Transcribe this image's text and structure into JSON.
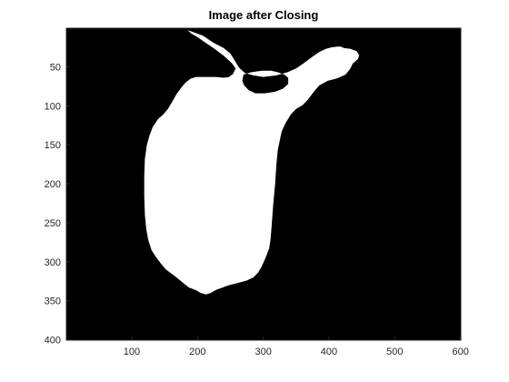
{
  "title": "Image after Closing",
  "colors": {
    "background": "#000000",
    "foreground": "#ffffff",
    "axis": "#262626"
  },
  "axes": {
    "x_ticks": [
      100,
      200,
      300,
      400,
      500,
      600
    ],
    "x_tick_labels": [
      "100",
      "200",
      "300",
      "400",
      "500",
      "600"
    ],
    "y_ticks": [
      50,
      100,
      150,
      200,
      250,
      300,
      350,
      400
    ],
    "y_tick_labels": [
      "50",
      "100",
      "150",
      "200",
      "250",
      "300",
      "350",
      "400"
    ],
    "xlim": [
      0.5,
      600.5
    ],
    "ylim": [
      0.5,
      400.5
    ],
    "y_reversed": true
  },
  "blob": {
    "outline": [
      [
        185,
        3
      ],
      [
        208,
        10
      ],
      [
        224,
        19
      ],
      [
        240,
        26
      ],
      [
        250,
        33
      ],
      [
        258,
        44
      ],
      [
        263,
        51
      ],
      [
        272,
        58
      ],
      [
        285,
        61
      ],
      [
        300,
        63
      ],
      [
        320,
        61
      ],
      [
        337,
        57
      ],
      [
        350,
        52
      ],
      [
        362,
        45
      ],
      [
        375,
        37
      ],
      [
        385,
        31
      ],
      [
        395,
        27
      ],
      [
        404,
        25
      ],
      [
        413,
        24
      ],
      [
        418,
        24
      ],
      [
        423,
        26
      ],
      [
        433,
        27
      ],
      [
        442,
        30
      ],
      [
        446,
        35
      ],
      [
        444,
        40
      ],
      [
        436,
        46
      ],
      [
        432,
        53
      ],
      [
        425,
        60
      ],
      [
        412,
        65
      ],
      [
        398,
        68
      ],
      [
        385,
        74
      ],
      [
        376,
        83
      ],
      [
        368,
        92
      ],
      [
        360,
        99
      ],
      [
        350,
        104
      ],
      [
        342,
        111
      ],
      [
        334,
        122
      ],
      [
        328,
        133
      ],
      [
        325,
        145
      ],
      [
        322,
        157
      ],
      [
        320,
        175
      ],
      [
        318,
        200
      ],
      [
        315,
        228
      ],
      [
        313,
        252
      ],
      [
        311,
        272
      ],
      [
        309,
        283
      ],
      [
        303,
        296
      ],
      [
        297,
        307
      ],
      [
        292,
        314
      ],
      [
        285,
        320
      ],
      [
        275,
        324
      ],
      [
        262,
        327
      ],
      [
        248,
        330
      ],
      [
        238,
        333
      ],
      [
        228,
        336
      ],
      [
        220,
        340
      ],
      [
        213,
        342
      ],
      [
        205,
        340
      ],
      [
        197,
        336
      ],
      [
        187,
        333
      ],
      [
        178,
        327
      ],
      [
        165,
        318
      ],
      [
        152,
        310
      ],
      [
        144,
        302
      ],
      [
        137,
        294
      ],
      [
        130,
        285
      ],
      [
        125,
        272
      ],
      [
        122,
        258
      ],
      [
        120,
        240
      ],
      [
        119,
        216
      ],
      [
        119,
        190
      ],
      [
        120,
        168
      ],
      [
        123,
        150
      ],
      [
        127,
        138
      ],
      [
        132,
        127
      ],
      [
        140,
        117
      ],
      [
        148,
        111
      ],
      [
        155,
        104
      ],
      [
        162,
        94
      ],
      [
        168,
        85
      ],
      [
        175,
        77
      ],
      [
        182,
        70
      ],
      [
        190,
        65
      ],
      [
        198,
        63
      ],
      [
        208,
        63
      ],
      [
        218,
        63
      ],
      [
        228,
        63
      ],
      [
        240,
        64
      ],
      [
        248,
        63
      ],
      [
        254,
        59
      ],
      [
        258,
        52
      ],
      [
        252,
        45
      ],
      [
        240,
        36
      ],
      [
        226,
        27
      ],
      [
        212,
        19
      ],
      [
        200,
        12
      ],
      [
        190,
        7
      ]
    ],
    "hole": [
      [
        270,
        60
      ],
      [
        282,
        57
      ],
      [
        298,
        55
      ],
      [
        312,
        55
      ],
      [
        322,
        57
      ],
      [
        332,
        60
      ],
      [
        338,
        64
      ],
      [
        338,
        72
      ],
      [
        330,
        78
      ],
      [
        318,
        82
      ],
      [
        302,
        84
      ],
      [
        288,
        84
      ],
      [
        278,
        80
      ],
      [
        271,
        74
      ],
      [
        268,
        68
      ]
    ]
  }
}
